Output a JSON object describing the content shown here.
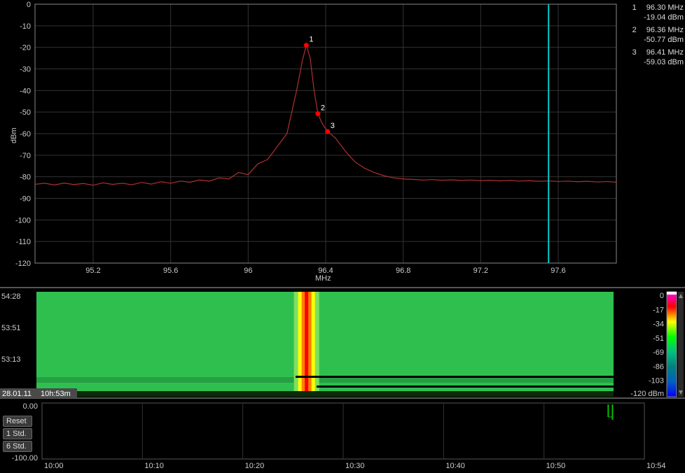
{
  "spectrum": {
    "yaxis": {
      "label": "dBm",
      "min": -120,
      "max": 0,
      "step": 10,
      "ticks": [
        0,
        -10,
        -20,
        -30,
        -40,
        -50,
        -60,
        -70,
        -80,
        -90,
        -100,
        -110,
        -120
      ]
    },
    "xaxis": {
      "label": "MHz",
      "min": 94.9,
      "max": 97.9,
      "ticks": [
        95.2,
        95.6,
        96.0,
        96.4,
        96.8,
        97.2,
        97.6
      ],
      "tick_labels": [
        "95.2",
        "95.6",
        "96",
        "96.4",
        "96.8",
        "97.2",
        "97.6"
      ]
    },
    "trace_color": "#b03030",
    "grid_color": "#333333",
    "border_color": "#888888",
    "background": "#000000",
    "cursor_x": 97.55,
    "cursor_color": "#00c8c8",
    "trace": [
      [
        94.9,
        -83.5
      ],
      [
        94.95,
        -83.0
      ],
      [
        95.0,
        -83.8
      ],
      [
        95.05,
        -82.9
      ],
      [
        95.1,
        -83.6
      ],
      [
        95.15,
        -83.1
      ],
      [
        95.2,
        -83.9
      ],
      [
        95.25,
        -82.8
      ],
      [
        95.3,
        -83.5
      ],
      [
        95.35,
        -83.0
      ],
      [
        95.4,
        -83.7
      ],
      [
        95.45,
        -82.6
      ],
      [
        95.5,
        -83.4
      ],
      [
        95.55,
        -82.3
      ],
      [
        95.6,
        -83.0
      ],
      [
        95.65,
        -82.0
      ],
      [
        95.7,
        -82.5
      ],
      [
        95.75,
        -81.5
      ],
      [
        95.8,
        -82.0
      ],
      [
        95.85,
        -80.5
      ],
      [
        95.9,
        -81.0
      ],
      [
        95.95,
        -78.0
      ],
      [
        96.0,
        -79.0
      ],
      [
        96.05,
        -74.0
      ],
      [
        96.1,
        -72.0
      ],
      [
        96.15,
        -66.0
      ],
      [
        96.2,
        -60.0
      ],
      [
        96.22,
        -52.0
      ],
      [
        96.25,
        -40.0
      ],
      [
        96.28,
        -26.0
      ],
      [
        96.3,
        -19.0
      ],
      [
        96.32,
        -25.0
      ],
      [
        96.34,
        -40.0
      ],
      [
        96.36,
        -50.77
      ],
      [
        96.38,
        -55.0
      ],
      [
        96.41,
        -59.03
      ],
      [
        96.45,
        -62.0
      ],
      [
        96.5,
        -68.0
      ],
      [
        96.55,
        -73.0
      ],
      [
        96.6,
        -76.0
      ],
      [
        96.65,
        -78.0
      ],
      [
        96.7,
        -79.5
      ],
      [
        96.75,
        -80.5
      ],
      [
        96.8,
        -81.0
      ],
      [
        96.85,
        -81.2
      ],
      [
        96.9,
        -81.5
      ],
      [
        96.95,
        -81.3
      ],
      [
        97.0,
        -81.6
      ],
      [
        97.05,
        -81.4
      ],
      [
        97.1,
        -81.7
      ],
      [
        97.15,
        -81.5
      ],
      [
        97.2,
        -81.8
      ],
      [
        97.25,
        -81.6
      ],
      [
        97.3,
        -81.9
      ],
      [
        97.35,
        -81.7
      ],
      [
        97.4,
        -82.0
      ],
      [
        97.45,
        -81.8
      ],
      [
        97.5,
        -82.1
      ],
      [
        97.55,
        -81.9
      ],
      [
        97.6,
        -82.2
      ],
      [
        97.65,
        -82.0
      ],
      [
        97.7,
        -82.3
      ],
      [
        97.75,
        -82.1
      ],
      [
        97.8,
        -82.4
      ],
      [
        97.85,
        -82.2
      ],
      [
        97.9,
        -82.5
      ]
    ],
    "markers": [
      {
        "id": "1",
        "freq": 96.3,
        "level": -19.04
      },
      {
        "id": "2",
        "freq": 96.36,
        "level": -50.77
      },
      {
        "id": "3",
        "freq": 96.41,
        "level": -59.03
      }
    ],
    "marker_color": "#ff0000",
    "marker_label_color": "#ffffff",
    "marker_readout_unit_freq": "MHz",
    "marker_readout_unit_level": "dBm"
  },
  "waterfall": {
    "time_ticks": [
      "54:28",
      "53:51",
      "53:13"
    ],
    "date_label": "28.01.11",
    "time_label": "10h:53m",
    "colorbar": {
      "ticks": [
        0,
        -17,
        -34,
        -51,
        -69,
        -86,
        -103
      ],
      "bottom_label": "-120 dBm",
      "colors": [
        "#ff00ff",
        "#ff0000",
        "#ffff00",
        "#00ff00",
        "#00c080",
        "#008080",
        "#0060c0",
        "#0000ff"
      ]
    },
    "peak_x_ratio": 0.468,
    "bg_color_main": "#2fbf4f",
    "band_colors": [
      "#ffff00",
      "#ff8000",
      "#ff0000",
      "#ff8000",
      "#ffff00"
    ]
  },
  "history": {
    "yaxis": {
      "ticks": [
        "0.00",
        "-100.00"
      ]
    },
    "xaxis": {
      "ticks": [
        "10:00",
        "10:10",
        "10:20",
        "10:30",
        "10:40",
        "10:50",
        "10:54"
      ]
    },
    "buttons": {
      "reset": "Reset",
      "one_hour": "1 Std.",
      "six_hour": "6 Std."
    },
    "grid_color": "#333333",
    "trace_color": "#00c000",
    "event_x_ratio": 0.94
  }
}
